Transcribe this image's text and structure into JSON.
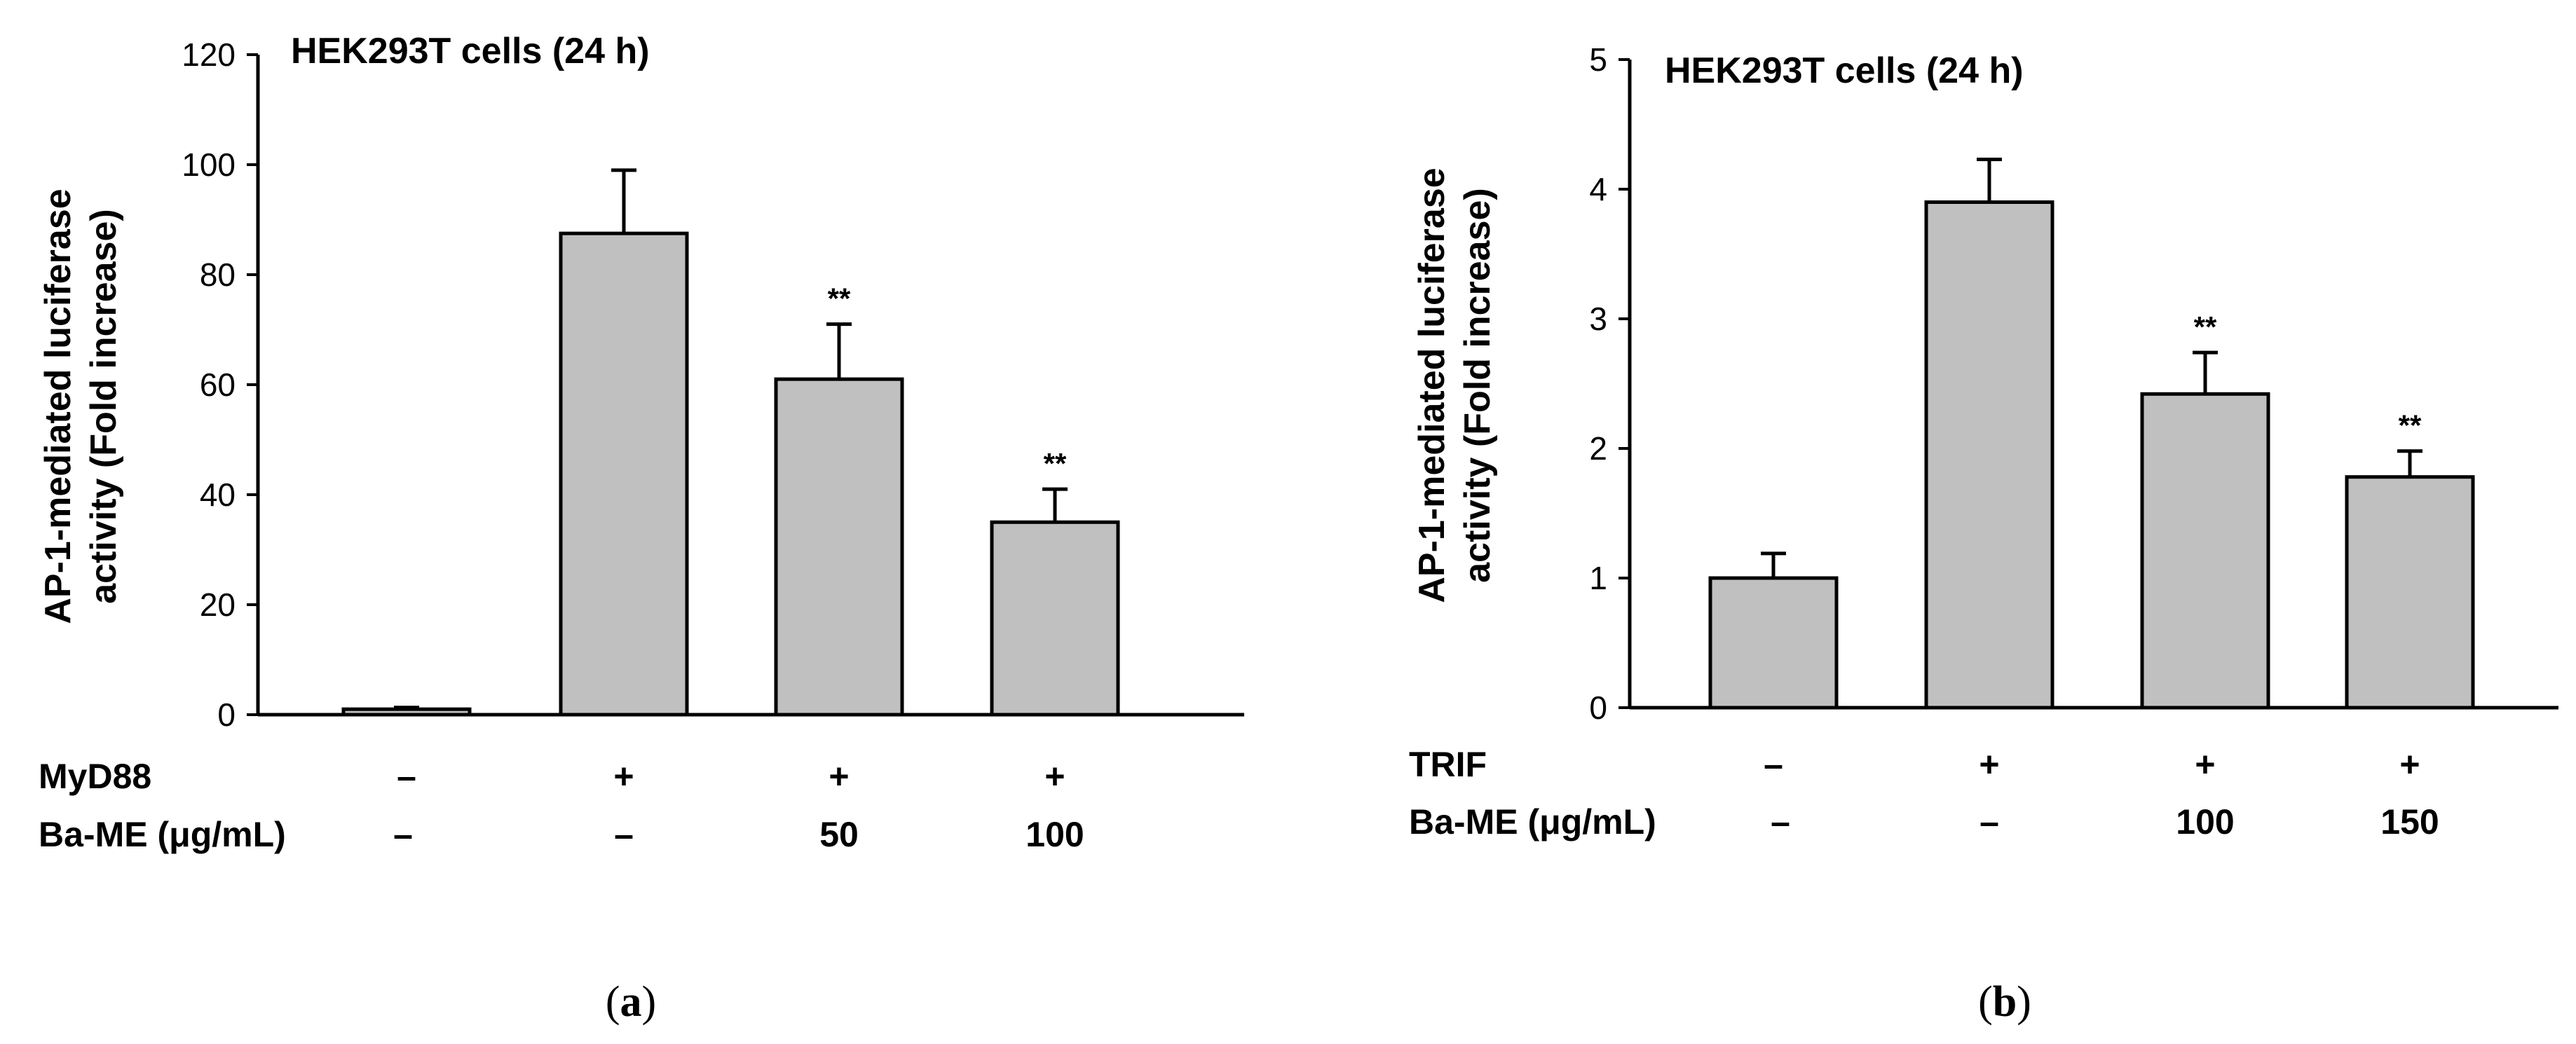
{
  "chart_data": [
    {
      "type": "bar",
      "panel_label": "a",
      "title": "HEK293T cells (24 h)",
      "ylabel": "AP-1-mediated luciferase activity (Fold increase)",
      "ylabel_lines": [
        "AP-1-mediated luciferase",
        "activity (Fold increase)"
      ],
      "ylim": [
        0,
        120
      ],
      "yticks": [
        0,
        20,
        40,
        60,
        80,
        100,
        120
      ],
      "grid": false,
      "bar_color": "#c0c0c0",
      "values": [
        1,
        87.5,
        61,
        35
      ],
      "errors": [
        0.3,
        11.5,
        10,
        6
      ],
      "significance": [
        "",
        "",
        "**",
        "**"
      ],
      "conditions": [
        {
          "label": "MyD88",
          "values": [
            "–",
            "+",
            "+",
            "+"
          ]
        },
        {
          "label": "Ba-ME (μg/mL)",
          "values": [
            "–",
            "–",
            "50",
            "100"
          ]
        }
      ]
    },
    {
      "type": "bar",
      "panel_label": "b",
      "title": "HEK293T cells (24 h)",
      "ylabel": "AP-1-mediated luciferase activity (Fold increase)",
      "ylabel_lines": [
        "AP-1-mediated luciferase",
        "activity (Fold increase)"
      ],
      "ylim": [
        0,
        5
      ],
      "yticks": [
        0,
        1,
        2,
        3,
        4,
        5
      ],
      "grid": false,
      "bar_color": "#c0c0c0",
      "values": [
        1,
        3.9,
        2.42,
        1.78
      ],
      "errors": [
        0.19,
        0.33,
        0.32,
        0.2
      ],
      "significance": [
        "",
        "",
        "**",
        "**"
      ],
      "conditions": [
        {
          "label": "TRIF",
          "values": [
            "–",
            "+",
            "+",
            "+"
          ]
        },
        {
          "label": "Ba-ME (μg/mL)",
          "values": [
            "–",
            "–",
            "100",
            "150"
          ]
        }
      ]
    }
  ]
}
